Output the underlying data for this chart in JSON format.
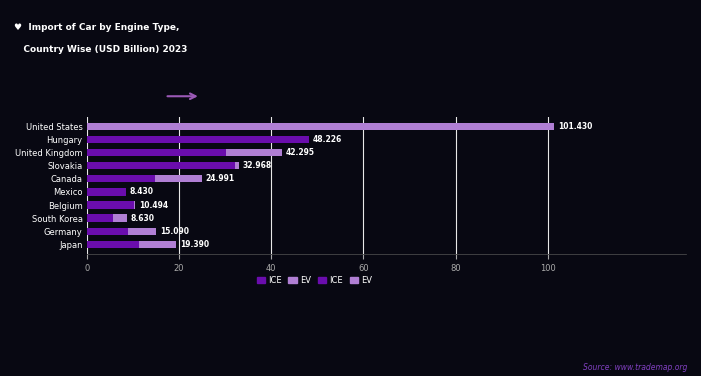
{
  "title": "Import of Car by Engine Type,",
  "title2": "Country Wise (USD Billion) 2023",
  "categories": [
    "Japan",
    "Germany",
    "South Korea",
    "Belgium",
    "Mexico",
    "Canada",
    "Slovakia",
    "United Kingdom",
    "Hungary",
    "United States"
  ],
  "ice_values": [
    11.39,
    9.047,
    5.63,
    10.288,
    8.4,
    14.814,
    32.094,
    30.295,
    48.226,
    0
  ],
  "ev_values": [
    8.0,
    6.043,
    3.0,
    0.206,
    0.03,
    10.177,
    0.874,
    12.0,
    0.0,
    101.43
  ],
  "background_color": "#080812",
  "bar_color_ice": "#6a0dad",
  "bar_color_ev": "#b07fd4",
  "grid_color": "#e8e8e8",
  "text_color": "#ffffff",
  "source": "Source: www.trademap.org",
  "xlim": [
    0,
    130
  ],
  "xticks": [
    0,
    20,
    40,
    60,
    80,
    100
  ],
  "legend_labels": [
    "ICE",
    "EV",
    "ICE ",
    "EV "
  ],
  "legend_colors": [
    "#6a0dad",
    "#b07fd4",
    "#6a0dad",
    "#b07fd4"
  ]
}
